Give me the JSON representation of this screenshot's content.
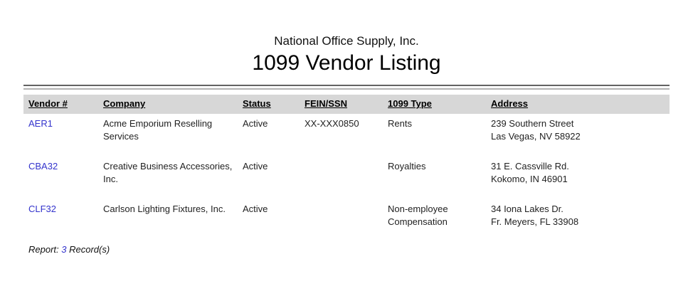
{
  "page": {
    "company_name": "National Office Supply, Inc.",
    "report_title": "1099 Vendor Listing"
  },
  "table": {
    "columns": {
      "vendor": "Vendor #",
      "company": "Company",
      "status": "Status",
      "fein": "FEIN/SSN",
      "type1099": "1099 Type",
      "address": "Address"
    },
    "rows": [
      {
        "vendor": "AER1",
        "company": "Acme Emporium Reselling Services",
        "status": "Active",
        "fein": "XX-XXX0850",
        "type1099": "Rents",
        "address_line1": "239 Southern Street",
        "address_line2": "Las Vegas, NV 58922"
      },
      {
        "vendor": "CBA32",
        "company": "Creative Business Accessories, Inc.",
        "status": "Active",
        "fein": "",
        "type1099": "Royalties",
        "address_line1": "31 E. Cassville Rd.",
        "address_line2": "Kokomo, IN 46901"
      },
      {
        "vendor": "CLF32",
        "company": "Carlson Lighting Fixtures, Inc.",
        "status": "Active",
        "fein": "",
        "type1099": "Non-employee Compensation",
        "address_line1": "34 Iona Lakes Dr.",
        "address_line2": "Fr. Meyers, FL 33908"
      }
    ]
  },
  "footer": {
    "label": "Report:",
    "count": "3",
    "suffix": "Record(s)"
  },
  "colors": {
    "link_blue": "#3333cc",
    "header_bg": "#d7d7d7",
    "rule_dark": "#636363",
    "rule_light": "#b2b2b2"
  }
}
